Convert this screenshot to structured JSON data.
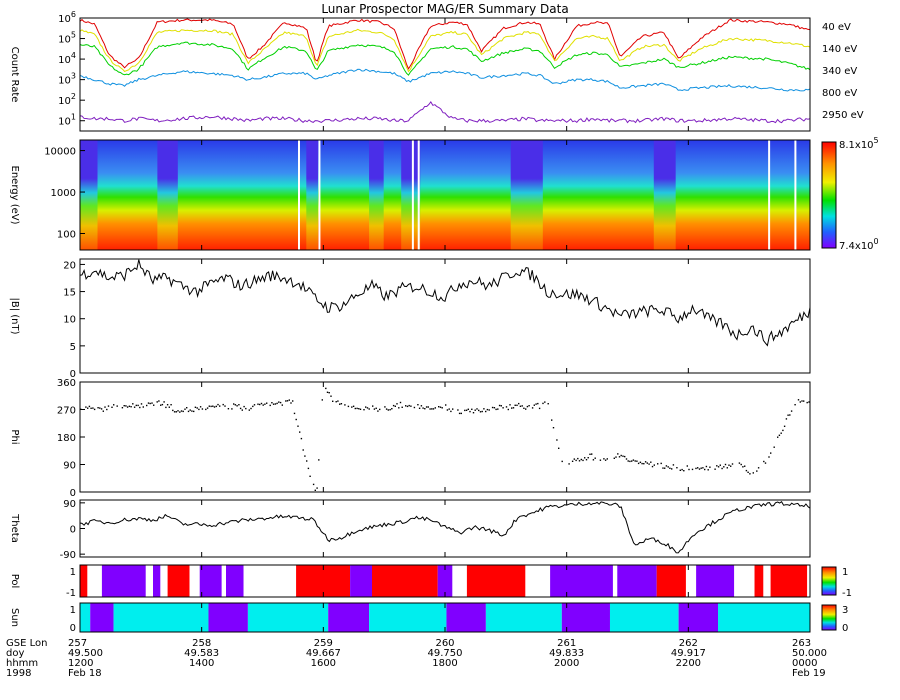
{
  "title": "Lunar Prospector MAG/ER Summary Data",
  "colors": {
    "counts": [
      "#e00000",
      "#e0e000",
      "#00d000",
      "#1090e0",
      "#8020c0"
    ],
    "pol_on": "#ff0000",
    "pol_off": "#8000ff",
    "sun_lit": "#00eeee",
    "sun_dark": "#8000ff"
  },
  "chart_data": [
    {
      "type": "line",
      "panel": "count-rate",
      "ylabel": "Count Rate",
      "yscale": "log",
      "ylim_exp": [
        0.5,
        6
      ],
      "yticks": [
        {
          "base": "10",
          "exp": "1"
        },
        {
          "base": "10",
          "exp": "2"
        },
        {
          "base": "10",
          "exp": "3"
        },
        {
          "base": "10",
          "exp": "4"
        },
        {
          "base": "10",
          "exp": "5"
        },
        {
          "base": "10",
          "exp": "6"
        }
      ],
      "x_range": [
        49.5,
        50.0
      ],
      "x": [
        49.5,
        49.51,
        49.52,
        49.53,
        49.54,
        49.553,
        49.57,
        49.59,
        49.605,
        49.615,
        49.625,
        49.64,
        49.655,
        49.662,
        49.67,
        49.69,
        49.705,
        49.715,
        49.725,
        49.74,
        49.755,
        49.765,
        49.775,
        49.79,
        49.805,
        49.815,
        49.825,
        49.84,
        49.852,
        49.862,
        49.87,
        49.885,
        49.9,
        49.91,
        49.925,
        49.945,
        49.97,
        49.985,
        50.0
      ],
      "series": [
        {
          "name": "40 eV",
          "values": [
            5.9,
            5.7,
            4.2,
            3.6,
            4.0,
            5.8,
            5.9,
            5.9,
            5.7,
            4.0,
            4.6,
            5.8,
            5.5,
            3.8,
            5.6,
            5.9,
            5.8,
            5.5,
            3.5,
            5.6,
            5.8,
            5.7,
            4.4,
            5.5,
            5.8,
            5.7,
            4.0,
            5.6,
            5.8,
            5.7,
            4.1,
            5.1,
            5.3,
            4.0,
            5.0,
            5.9,
            5.8,
            5.7,
            5.4
          ]
        },
        {
          "name": "140 eV",
          "values": [
            5.4,
            5.2,
            4.0,
            3.4,
            3.8,
            5.3,
            5.4,
            5.4,
            5.2,
            3.8,
            4.4,
            5.3,
            5.1,
            3.6,
            5.1,
            5.4,
            5.3,
            5.0,
            3.4,
            5.1,
            5.3,
            5.2,
            4.2,
            5.0,
            5.3,
            5.2,
            3.9,
            5.0,
            5.1,
            5.0,
            3.9,
            4.6,
            4.7,
            3.9,
            4.5,
            5.0,
            4.9,
            4.8,
            4.6
          ]
        },
        {
          "name": "340 eV",
          "values": [
            4.7,
            4.6,
            3.7,
            3.2,
            3.5,
            4.6,
            4.8,
            4.7,
            4.5,
            3.5,
            4.0,
            4.6,
            4.4,
            3.4,
            4.4,
            4.7,
            4.6,
            4.4,
            3.2,
            4.5,
            4.6,
            4.5,
            3.9,
            4.3,
            4.5,
            4.4,
            3.6,
            4.2,
            4.3,
            4.2,
            3.6,
            3.8,
            4.0,
            3.6,
            3.8,
            4.1,
            4.0,
            3.8,
            3.5
          ]
        },
        {
          "name": "800 eV",
          "values": [
            3.2,
            3.0,
            2.8,
            2.7,
            3.0,
            3.2,
            3.4,
            3.3,
            3.2,
            3.0,
            3.1,
            3.3,
            3.3,
            3.0,
            3.2,
            3.5,
            3.4,
            3.3,
            2.9,
            3.3,
            3.4,
            3.3,
            3.1,
            3.2,
            3.3,
            3.2,
            2.8,
            3.0,
            3.0,
            2.9,
            2.6,
            2.7,
            2.8,
            2.5,
            2.6,
            2.7,
            2.6,
            2.5,
            2.5
          ]
        },
        {
          "name": "2950 eV",
          "values": [
            1.2,
            1.1,
            1.1,
            1.0,
            1.1,
            1.0,
            1.1,
            1.2,
            1.1,
            1.0,
            1.1,
            1.1,
            1.0,
            1.0,
            1.0,
            1.1,
            1.1,
            1.0,
            1.0,
            1.9,
            1.1,
            1.0,
            1.0,
            1.0,
            1.1,
            1.0,
            1.0,
            1.0,
            1.1,
            1.0,
            1.0,
            1.0,
            1.1,
            1.0,
            1.0,
            1.1,
            1.0,
            1.0,
            1.1
          ]
        }
      ]
    },
    {
      "type": "heatmap",
      "panel": "energy-spectrogram",
      "ylabel": "Energy (eV)",
      "yscale": "log",
      "ylim": [
        40,
        18000
      ],
      "yticks": [
        "100",
        "1000",
        "10000"
      ],
      "colorbar": {
        "max_base": "8.1x10",
        "max_exp": "5",
        "min_base": "7.4x10",
        "min_exp": "0"
      },
      "wake_intervals": [
        [
          49.5,
          49.512
        ],
        [
          49.553,
          49.567
        ],
        [
          49.655,
          49.663
        ],
        [
          49.698,
          49.708
        ],
        [
          49.72,
          49.733
        ],
        [
          49.795,
          49.817
        ],
        [
          49.893,
          49.908
        ]
      ],
      "data_gaps": [
        49.65,
        49.664,
        49.728,
        49.732,
        49.972,
        49.99
      ]
    },
    {
      "type": "line",
      "panel": "b-magnitude",
      "ylabel": "|B| (nT)",
      "ylim": [
        0,
        21
      ],
      "yticks": [
        "0",
        "5",
        "10",
        "15",
        "20"
      ],
      "x": [
        49.5,
        49.51,
        49.52,
        49.53,
        49.54,
        49.55,
        49.56,
        49.57,
        49.58,
        49.59,
        49.6,
        49.61,
        49.62,
        49.63,
        49.64,
        49.65,
        49.66,
        49.67,
        49.68,
        49.69,
        49.7,
        49.71,
        49.72,
        49.73,
        49.74,
        49.75,
        49.76,
        49.77,
        49.78,
        49.79,
        49.8,
        49.81,
        49.82,
        49.83,
        49.84,
        49.85,
        49.86,
        49.87,
        49.88,
        49.89,
        49.9,
        49.91,
        49.92,
        49.93,
        49.94,
        49.95,
        49.96,
        49.97,
        49.98,
        49.99,
        50.0
      ],
      "values": [
        18,
        19,
        17.5,
        18,
        20,
        17,
        17.5,
        16,
        15,
        16.5,
        17.5,
        16,
        17,
        18,
        17.5,
        16.5,
        14,
        12,
        12.5,
        14.5,
        16,
        14,
        15.5,
        16,
        15,
        14,
        16.5,
        17,
        16,
        17.5,
        19,
        18,
        15,
        14.5,
        14.5,
        13.5,
        12,
        10.5,
        11,
        11.5,
        11.5,
        10,
        12,
        10,
        9,
        7,
        8.5,
        6,
        7.5,
        9.5,
        11.5
      ]
    },
    {
      "type": "scatter",
      "panel": "phi",
      "ylabel": "Phi",
      "ylim": [
        0,
        360
      ],
      "yticks": [
        "0",
        "90",
        "180",
        "270",
        "360"
      ],
      "x": [
        49.505,
        49.515,
        49.525,
        49.535,
        49.545,
        49.555,
        49.565,
        49.575,
        49.585,
        49.595,
        49.605,
        49.615,
        49.625,
        49.635,
        49.645,
        49.658,
        49.662,
        49.666,
        49.672,
        49.68,
        49.69,
        49.7,
        49.71,
        49.72,
        49.73,
        49.74,
        49.75,
        49.76,
        49.77,
        49.78,
        49.79,
        49.8,
        49.81,
        49.82,
        49.83,
        49.84,
        49.85,
        49.86,
        49.87,
        49.88,
        49.89,
        49.9,
        49.91,
        49.92,
        49.93,
        49.94,
        49.95,
        49.96,
        49.97,
        49.98,
        49.99
      ],
      "values": [
        280,
        275,
        285,
        282,
        290,
        295,
        272,
        270,
        278,
        280,
        283,
        275,
        290,
        292,
        298,
        30,
        10,
        345,
        310,
        285,
        280,
        276,
        272,
        288,
        284,
        282,
        278,
        266,
        270,
        272,
        280,
        285,
        280,
        290,
        95,
        110,
        118,
        105,
        125,
        100,
        92,
        88,
        78,
        84,
        80,
        88,
        95,
        60,
        110,
        200,
        300
      ]
    },
    {
      "type": "line",
      "panel": "theta",
      "ylabel": "Theta",
      "ylim": [
        -100,
        100
      ],
      "yticks": [
        "-90",
        "0",
        "90"
      ],
      "x": [
        49.5,
        49.51,
        49.52,
        49.53,
        49.54,
        49.55,
        49.56,
        49.57,
        49.58,
        49.59,
        49.6,
        49.61,
        49.62,
        49.63,
        49.64,
        49.65,
        49.66,
        49.67,
        49.68,
        49.69,
        49.7,
        49.71,
        49.72,
        49.73,
        49.74,
        49.75,
        49.76,
        49.77,
        49.78,
        49.79,
        49.8,
        49.81,
        49.82,
        49.83,
        49.84,
        49.85,
        49.86,
        49.87,
        49.88,
        49.89,
        49.9,
        49.91,
        49.92,
        49.93,
        49.94,
        49.95,
        49.96,
        49.97,
        49.98,
        49.99,
        50.0
      ],
      "values": [
        15,
        25,
        20,
        30,
        35,
        30,
        45,
        15,
        15,
        12,
        20,
        28,
        32,
        38,
        42,
        38,
        30,
        -40,
        -30,
        -5,
        5,
        15,
        22,
        38,
        30,
        5,
        -15,
        5,
        -5,
        -25,
        40,
        55,
        75,
        80,
        85,
        90,
        88,
        80,
        -60,
        -35,
        -50,
        -85,
        -20,
        10,
        40,
        65,
        75,
        85,
        88,
        82,
        78
      ]
    },
    {
      "type": "bar",
      "panel": "pol",
      "ylabel": "Pol",
      "colorbar_ticks": [
        "1",
        "-1"
      ],
      "on_label": "1",
      "off_label": "-1",
      "segments": [
        {
          "start": 49.5,
          "end": 49.505,
          "state": "on"
        },
        {
          "start": 49.515,
          "end": 49.545,
          "state": "off"
        },
        {
          "start": 49.55,
          "end": 49.555,
          "state": "off"
        },
        {
          "start": 49.56,
          "end": 49.575,
          "state": "on"
        },
        {
          "start": 49.582,
          "end": 49.597,
          "state": "off"
        },
        {
          "start": 49.6,
          "end": 49.612,
          "state": "off"
        },
        {
          "start": 49.648,
          "end": 49.685,
          "state": "on"
        },
        {
          "start": 49.685,
          "end": 49.7,
          "state": "off"
        },
        {
          "start": 49.7,
          "end": 49.745,
          "state": "on"
        },
        {
          "start": 49.745,
          "end": 49.755,
          "state": "off"
        },
        {
          "start": 49.765,
          "end": 49.805,
          "state": "on"
        },
        {
          "start": 49.822,
          "end": 49.865,
          "state": "off"
        },
        {
          "start": 49.868,
          "end": 49.895,
          "state": "off"
        },
        {
          "start": 49.895,
          "end": 49.915,
          "state": "on"
        },
        {
          "start": 49.922,
          "end": 49.948,
          "state": "off"
        },
        {
          "start": 49.962,
          "end": 49.968,
          "state": "on"
        },
        {
          "start": 49.973,
          "end": 49.998,
          "state": "on"
        }
      ]
    },
    {
      "type": "bar",
      "panel": "sun",
      "ylabel": "Sun",
      "colorbar_ticks": [
        "3",
        "0"
      ],
      "on_label": "1",
      "off_label": "0",
      "segments": [
        {
          "start": 49.5,
          "end": 49.507,
          "state": "lit"
        },
        {
          "start": 49.507,
          "end": 49.523,
          "state": "dark"
        },
        {
          "start": 49.523,
          "end": 49.588,
          "state": "lit"
        },
        {
          "start": 49.588,
          "end": 49.615,
          "state": "dark"
        },
        {
          "start": 49.615,
          "end": 49.67,
          "state": "lit"
        },
        {
          "start": 49.67,
          "end": 49.698,
          "state": "dark"
        },
        {
          "start": 49.698,
          "end": 49.751,
          "state": "lit"
        },
        {
          "start": 49.751,
          "end": 49.778,
          "state": "dark"
        },
        {
          "start": 49.778,
          "end": 49.83,
          "state": "lit"
        },
        {
          "start": 49.83,
          "end": 49.863,
          "state": "dark"
        },
        {
          "start": 49.863,
          "end": 49.91,
          "state": "lit"
        },
        {
          "start": 49.91,
          "end": 49.937,
          "state": "dark"
        },
        {
          "start": 49.937,
          "end": 50.0,
          "state": "lit"
        }
      ]
    }
  ],
  "x_axis": {
    "row_labels": [
      "GSE Lon",
      "doy",
      "hhmm",
      "1998"
    ],
    "ticks": [
      {
        "lon": "257",
        "doy": "49.500",
        "hhmm": "1200",
        "date": "Feb 18"
      },
      {
        "lon": "258",
        "doy": "49.583",
        "hhmm": "1400",
        "date": ""
      },
      {
        "lon": "259",
        "doy": "49.667",
        "hhmm": "1600",
        "date": ""
      },
      {
        "lon": "260",
        "doy": "49.750",
        "hhmm": "1800",
        "date": ""
      },
      {
        "lon": "261",
        "doy": "49.833",
        "hhmm": "2000",
        "date": ""
      },
      {
        "lon": "262",
        "doy": "49.917",
        "hhmm": "2200",
        "date": ""
      },
      {
        "lon": "263",
        "doy": "50.000",
        "hhmm": "0000",
        "date": "Feb 19"
      }
    ]
  }
}
